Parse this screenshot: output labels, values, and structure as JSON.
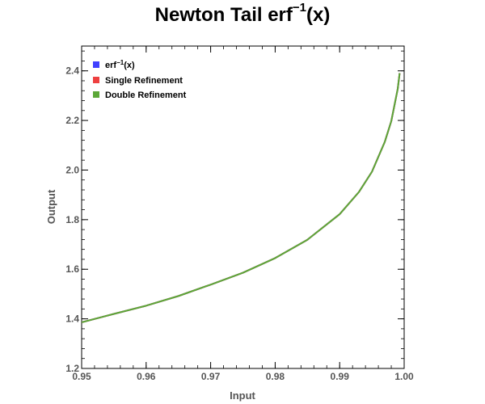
{
  "chart_data": {
    "type": "line",
    "title": {
      "prefix": "Newton Tail erf",
      "sup": "−1",
      "suffix": "(x)"
    },
    "xlabel": "Input",
    "ylabel": "Output",
    "xlim": [
      0.95,
      1.0
    ],
    "ylim": [
      1.2,
      2.5
    ],
    "x_ticks": [
      0.95,
      0.96,
      0.97,
      0.98,
      0.99,
      1.0
    ],
    "x_tick_labels": [
      "0.95",
      "0.96",
      "0.97",
      "0.98",
      "0.99",
      "1.00"
    ],
    "y_ticks": [
      1.2,
      1.4,
      1.6,
      1.8,
      2.0,
      2.2,
      2.4
    ],
    "y_tick_labels": [
      "1.2",
      "1.4",
      "1.6",
      "1.8",
      "2.0",
      "2.2",
      "2.4"
    ],
    "grid": false,
    "legend_position": "top-left",
    "series": [
      {
        "name": {
          "prefix": "erf",
          "sup": "−1",
          "suffix": "(x)"
        },
        "color": "#4040ff",
        "x": [
          0.95,
          0.955,
          0.96,
          0.965,
          0.97,
          0.975,
          0.98,
          0.985,
          0.99,
          0.993,
          0.995,
          0.997,
          0.998,
          0.999,
          0.9993
        ],
        "y": [
          1.386,
          1.42,
          1.453,
          1.492,
          1.538,
          1.586,
          1.645,
          1.719,
          1.822,
          1.912,
          1.993,
          2.114,
          2.197,
          2.327,
          2.391
        ]
      },
      {
        "name": "Single Refinement",
        "color": "#ee4040",
        "x": [
          0.95,
          0.955,
          0.96,
          0.965,
          0.97,
          0.975,
          0.98,
          0.985,
          0.99,
          0.993,
          0.995,
          0.997,
          0.998,
          0.999,
          0.9993
        ],
        "y": [
          1.386,
          1.42,
          1.453,
          1.492,
          1.538,
          1.586,
          1.645,
          1.719,
          1.822,
          1.912,
          1.993,
          2.114,
          2.197,
          2.327,
          2.391
        ]
      },
      {
        "name": "Double Refinement",
        "color": "#5ca838",
        "x": [
          0.95,
          0.955,
          0.96,
          0.965,
          0.97,
          0.975,
          0.98,
          0.985,
          0.99,
          0.993,
          0.995,
          0.997,
          0.998,
          0.999,
          0.9993
        ],
        "y": [
          1.386,
          1.42,
          1.453,
          1.492,
          1.538,
          1.586,
          1.645,
          1.719,
          1.822,
          1.912,
          1.993,
          2.114,
          2.197,
          2.327,
          2.391
        ]
      }
    ]
  }
}
